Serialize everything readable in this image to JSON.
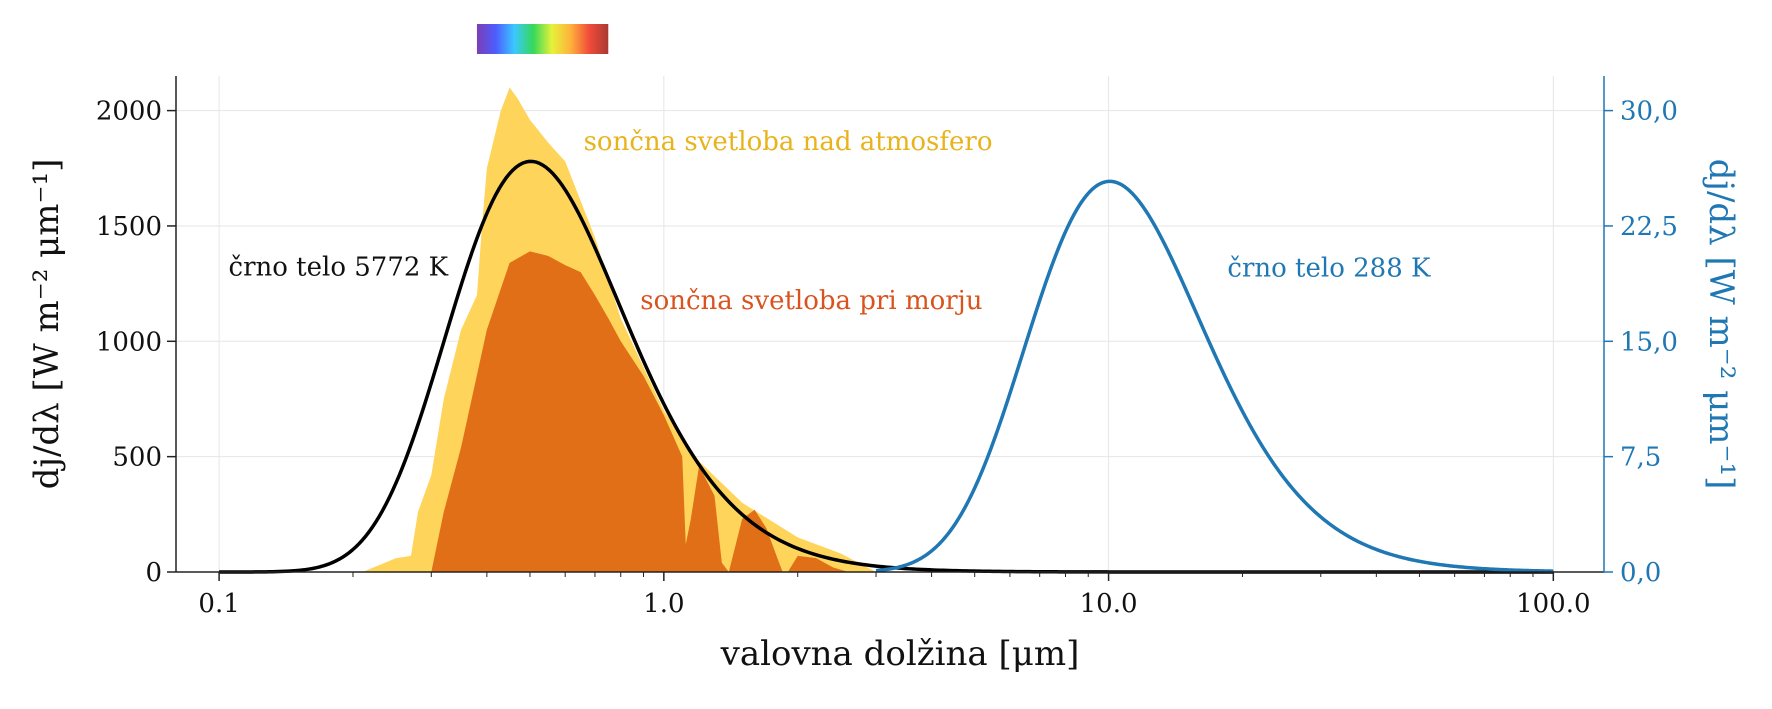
{
  "chart_data": {
    "type": "area",
    "x_scale": "log",
    "xlim": [
      0.08,
      130
    ],
    "ylim_left": [
      0,
      2150
    ],
    "ylim_right": [
      0,
      32.25
    ],
    "grid": true,
    "xlabel": "valovna dolžina [μm]",
    "ylabel_left": "dj/dλ [W m⁻² μm⁻¹]",
    "ylabel_right": "dj/dλ [W m⁻² μm⁻¹]",
    "x_ticks": [
      0.1,
      1.0,
      10.0,
      100.0
    ],
    "x_tick_labels": [
      "0.1",
      "1.0",
      "10.0",
      "100.0"
    ],
    "y_left_ticks": [
      0,
      500,
      1000,
      1500,
      2000
    ],
    "y_left_tick_labels": [
      "0",
      "500",
      "1000",
      "1500",
      "2000"
    ],
    "y_right_ticks": [
      0,
      7.5,
      15,
      22.5,
      30
    ],
    "y_right_tick_labels": [
      "0,0",
      "7,5",
      "15,0",
      "22,5",
      "30,0"
    ],
    "visible_spectrum_bar": {
      "x_start": 0.38,
      "x_end": 0.75,
      "colors": [
        "#7b3fb4",
        "#4d5dff",
        "#3ac8ff",
        "#35d85a",
        "#e6f23a",
        "#ffb13b",
        "#f14a3a",
        "#a83a33"
      ]
    },
    "series": [
      {
        "name": "sončna svetloba nad atmosfero",
        "kind": "area",
        "axis": "left",
        "color": "#ffd45a",
        "label_color": "#e8b31b",
        "x": [
          0.21,
          0.25,
          0.27,
          0.28,
          0.3,
          0.32,
          0.35,
          0.38,
          0.39,
          0.4,
          0.43,
          0.45,
          0.47,
          0.5,
          0.55,
          0.6,
          0.7,
          0.8,
          1.0,
          1.2,
          1.5,
          2.0,
          2.5,
          3.0
        ],
        "values": [
          0,
          60,
          70,
          260,
          420,
          750,
          1050,
          1200,
          1500,
          1750,
          2000,
          2100,
          2050,
          1960,
          1860,
          1780,
          1450,
          1100,
          700,
          480,
          300,
          150,
          80,
          0
        ]
      },
      {
        "name": "sončna svetloba pri morju",
        "kind": "area",
        "axis": "left",
        "color": "#e06f17",
        "label_color": "#d9531e",
        "x": [
          0.3,
          0.32,
          0.35,
          0.4,
          0.45,
          0.5,
          0.55,
          0.6,
          0.65,
          0.7,
          0.75,
          0.8,
          0.9,
          1.0,
          1.1,
          1.12,
          1.15,
          1.2,
          1.3,
          1.35,
          1.4,
          1.5,
          1.6,
          1.7,
          1.8,
          1.85,
          1.9,
          2.0,
          2.2,
          2.4,
          2.5,
          2.6
        ],
        "values": [
          0,
          260,
          540,
          1050,
          1340,
          1390,
          1370,
          1330,
          1300,
          1200,
          1100,
          1000,
          850,
          680,
          500,
          120,
          230,
          460,
          330,
          40,
          0,
          230,
          270,
          190,
          60,
          0,
          0,
          70,
          60,
          20,
          10,
          0
        ]
      },
      {
        "name": "črno telo 5772 K",
        "kind": "line",
        "axis": "left",
        "color": "#000000",
        "label_color": "#000000",
        "temperature_K": 5772,
        "peak_value": 1780,
        "x_start": 0.1,
        "x_end": 100
      },
      {
        "name": "črno telo 288 K",
        "kind": "line",
        "axis": "right",
        "color": "#1f77b4",
        "label_color": "#1f77b4",
        "temperature_K": 288,
        "peak_value": 25.4,
        "x_start": 3.0,
        "x_end": 100
      }
    ],
    "annotations": [
      {
        "text": "sončna svetloba nad atmosfero",
        "x": 0.66,
        "y": 1830,
        "axis": "left",
        "color": "#e8b31b",
        "anchor": "start"
      },
      {
        "text": "črno telo 5772 K",
        "x": 0.105,
        "y": 1285,
        "axis": "left",
        "color": "#111111",
        "anchor": "start"
      },
      {
        "text": "sončna svetloba pri morju",
        "x": 0.885,
        "y": 1140,
        "axis": "left",
        "color": "#d9531e",
        "anchor": "start"
      },
      {
        "text": "črno telo 288 K",
        "x": 18.5,
        "y": 19.2,
        "axis": "right",
        "color": "#1f77b4",
        "anchor": "start"
      }
    ]
  }
}
